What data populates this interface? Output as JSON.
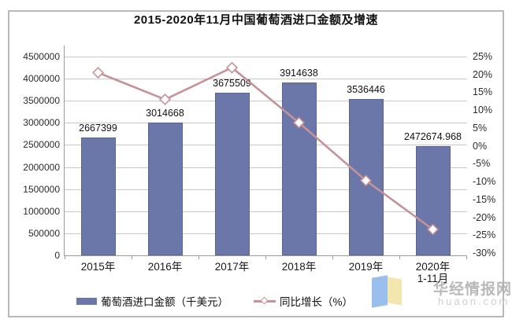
{
  "title": "2015-2020年11月中国葡萄酒进口金额及增速",
  "chart_data": {
    "type": "bar",
    "combo": "bar+line",
    "title": "2015-2020年11月中国葡萄酒进口金额及增速",
    "categories": [
      "2015年",
      "2016年",
      "2017年",
      "2018年",
      "2019年",
      "2020年"
    ],
    "category_sublabels": [
      "",
      "",
      "",
      "",
      "",
      "1-11月"
    ],
    "series": [
      {
        "name": "葡萄酒进口金额（千美元）",
        "type": "bar",
        "axis": "left",
        "values": [
          2667399,
          3014668,
          3675509,
          3914638,
          3536446,
          2472674.968
        ],
        "labels": [
          "2667399",
          "3014668",
          "3675509",
          "3914638",
          "3536446",
          "2472674.968"
        ],
        "color": "#6b76a9"
      },
      {
        "name": "同比增长（%）",
        "type": "line",
        "axis": "right",
        "values": [
          20.5,
          13.0,
          21.9,
          6.5,
          -9.7,
          -23.4
        ],
        "color": "#c4939a",
        "marker": "white-diamond"
      }
    ],
    "y_axis_left": {
      "min": 0,
      "max": 4500000,
      "step": 500000,
      "ticks": [
        "0",
        "500000",
        "1000000",
        "1500000",
        "2000000",
        "2500000",
        "3000000",
        "3500000",
        "4000000",
        "4500000"
      ]
    },
    "y_axis_right": {
      "min": -30,
      "max": 25,
      "step": 5,
      "ticks": [
        "25%",
        "20%",
        "15%",
        "10%",
        "5%",
        "0%",
        "-5%",
        "-10%",
        "-15%",
        "-20%",
        "-25%",
        "-30%"
      ]
    },
    "grid": true,
    "legend_position": "bottom",
    "xlabel": "",
    "ylabel": ""
  },
  "legend": {
    "bar_label": "葡萄酒进口金额（千美元）",
    "line_label": "同比增长（%）"
  },
  "watermark": {
    "name": "华经情报网",
    "domain": "huaon.com"
  },
  "colors": {
    "bar_fill": "#6b76a9",
    "bar_border": "#5a6495",
    "line": "#c4939a",
    "marker_fill": "#ffffff",
    "gridline": "#c9c9c9",
    "axis": "#9a9a9a",
    "frame_border": "#b9b9b9",
    "watermark_text": "#adadad",
    "logo_blue": "#8ab4ea",
    "logo_yellow": "#f2e2a0"
  }
}
